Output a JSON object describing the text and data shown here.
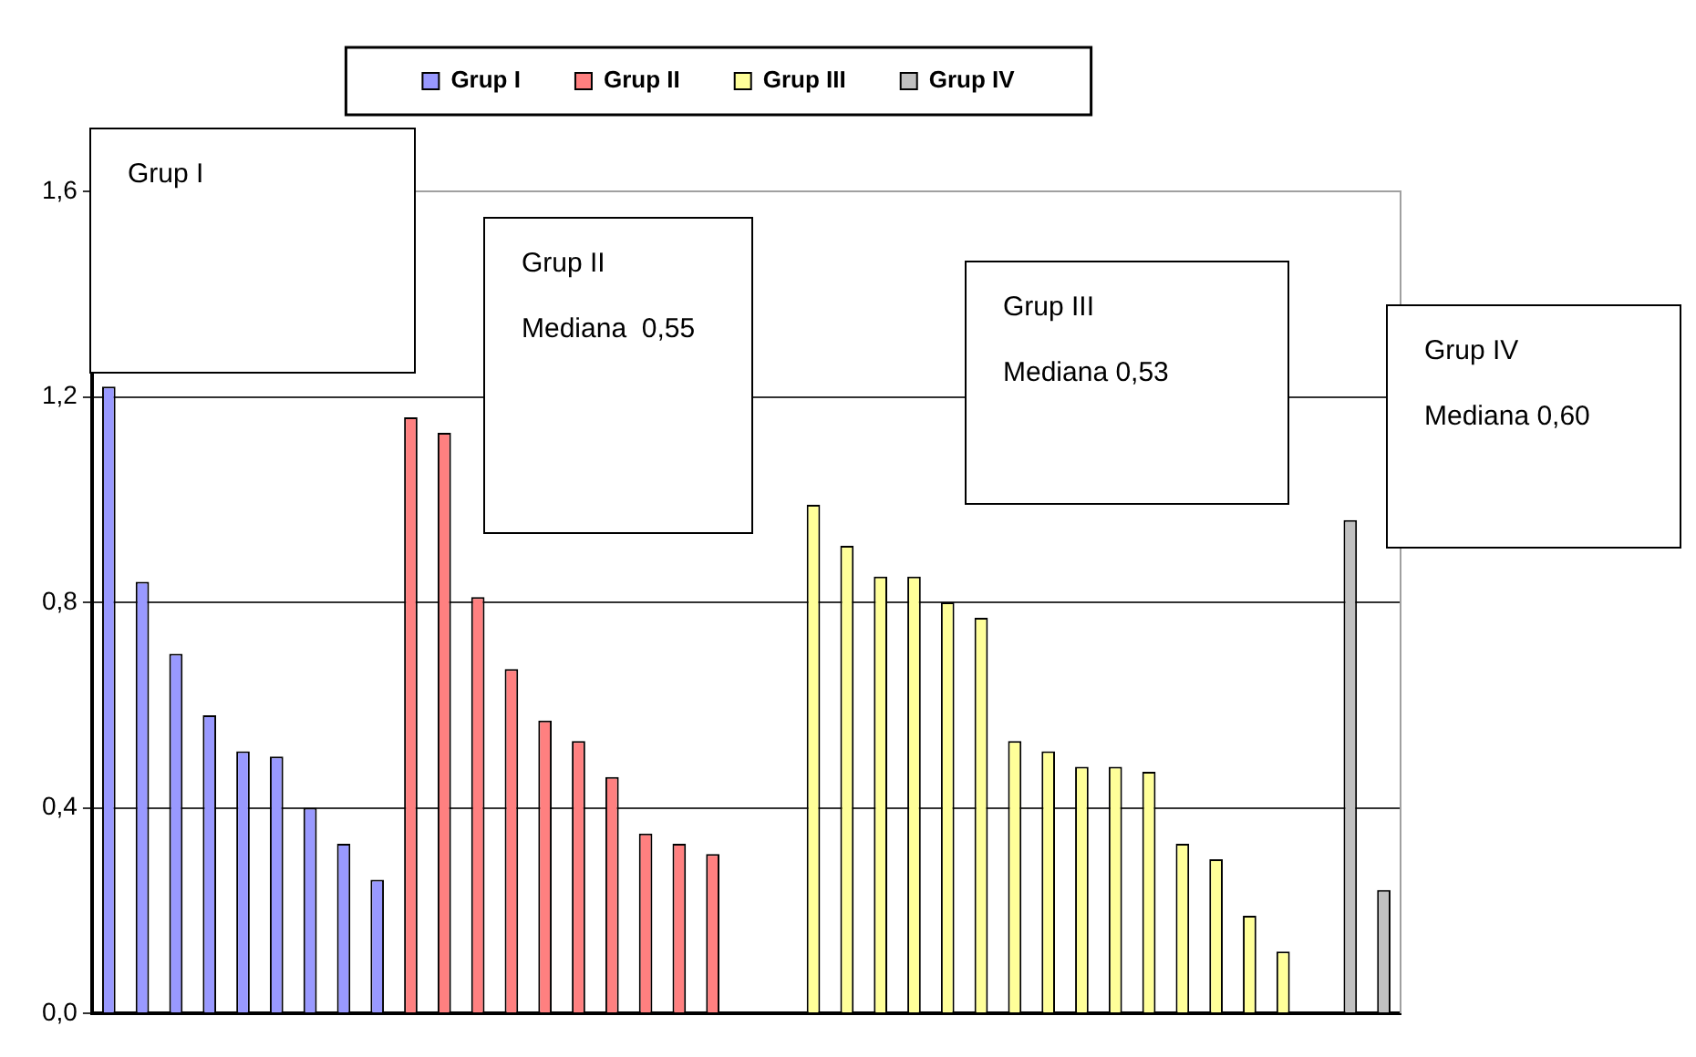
{
  "chart_data": {
    "type": "bar",
    "categories": [
      null,
      null,
      null,
      null,
      null,
      null,
      null,
      null,
      null,
      null,
      null,
      null,
      null,
      null,
      null,
      null,
      null,
      null,
      null,
      null,
      null,
      null,
      null,
      null,
      null,
      null,
      null,
      null,
      null,
      null,
      null,
      null,
      null,
      null,
      null,
      null,
      null,
      null,
      null
    ],
    "series": [
      {
        "name": "Grup I",
        "color": "#9999ff",
        "values": [
          1.22,
          0.84,
          0.7,
          0.58,
          0.51,
          0.5,
          0.4,
          0.33,
          0.26,
          null,
          null,
          null,
          null,
          null,
          null,
          null,
          null,
          null,
          null,
          null,
          null,
          null,
          null,
          null,
          null,
          null,
          null,
          null,
          null,
          null,
          null,
          null,
          null,
          null,
          null,
          null,
          null,
          null,
          null
        ]
      },
      {
        "name": "Grup II",
        "color": "#ff8080",
        "values": [
          null,
          null,
          null,
          null,
          null,
          null,
          null,
          null,
          null,
          1.16,
          1.13,
          0.81,
          0.67,
          0.57,
          0.53,
          0.46,
          0.35,
          0.33,
          0.31,
          null,
          null,
          null,
          null,
          null,
          null,
          null,
          null,
          null,
          null,
          null,
          null,
          null,
          null,
          null,
          null,
          null,
          null,
          null,
          null
        ]
      },
      {
        "name": "Grup III",
        "color": "#ffff99",
        "values": [
          null,
          null,
          null,
          null,
          null,
          null,
          null,
          null,
          null,
          null,
          null,
          null,
          null,
          null,
          null,
          null,
          null,
          null,
          null,
          null,
          null,
          0.99,
          0.91,
          0.85,
          0.85,
          0.8,
          0.77,
          0.53,
          0.51,
          0.48,
          0.48,
          0.47,
          0.33,
          0.3,
          0.19,
          0.12,
          null,
          null,
          null
        ]
      },
      {
        "name": "Grup IV",
        "color": "#c0c0c0",
        "values": [
          null,
          null,
          null,
          null,
          null,
          null,
          null,
          null,
          null,
          null,
          null,
          null,
          null,
          null,
          null,
          null,
          null,
          null,
          null,
          null,
          null,
          null,
          null,
          null,
          null,
          null,
          null,
          null,
          null,
          null,
          null,
          null,
          null,
          null,
          null,
          null,
          null,
          0.96,
          0.24
        ]
      }
    ],
    "ylim": [
      0,
      1.6
    ],
    "yticks": [
      {
        "value": 0,
        "label": "0,0"
      },
      {
        "value": 0.4,
        "label": "0,4"
      },
      {
        "value": 0.8,
        "label": "0,8"
      },
      {
        "value": 1.2,
        "label": "1,2"
      },
      {
        "value": 1.6,
        "label": "1,6"
      }
    ],
    "grid": "y",
    "legend": "top",
    "annotations": [
      "Grup I",
      "Grup II\n\nMediana  0,55",
      "Grup III\n\nMediana 0,53",
      "Grup IV\n\nMediana 0,60"
    ]
  }
}
